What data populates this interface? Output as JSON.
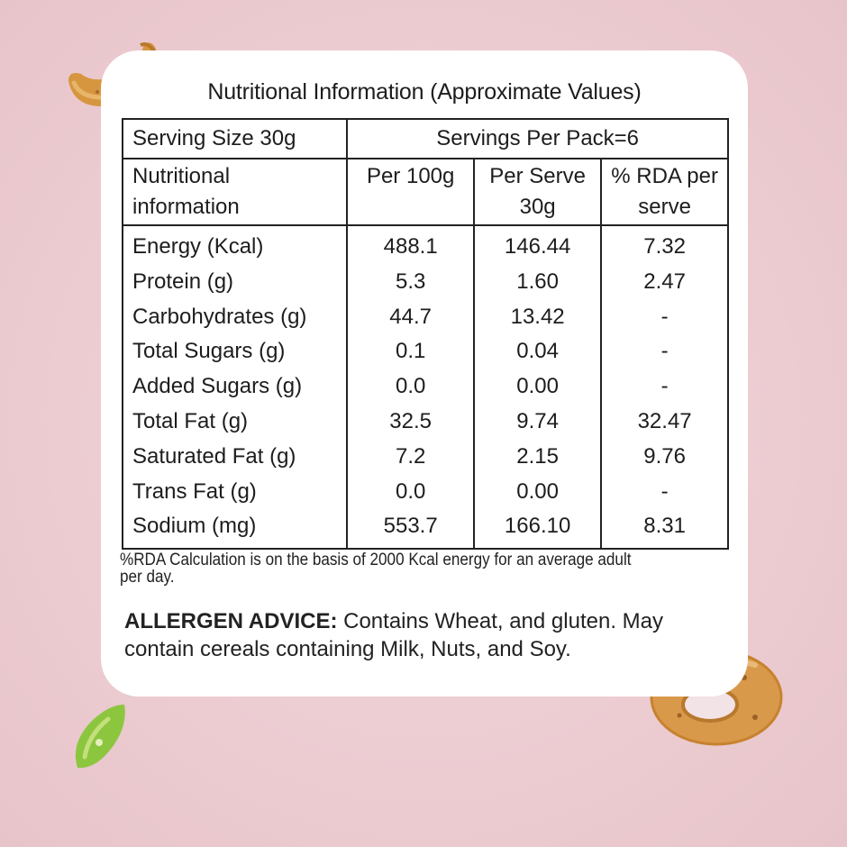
{
  "title": "Nutritional Information (Approximate Values)",
  "serving_size": "Serving Size 30g",
  "servings_per_pack": "Servings Per Pack=6",
  "headers": {
    "col1": "Nutritional information",
    "col2": "Per 100g",
    "col3": "Per Serve 30g",
    "col4": "% RDA per serve"
  },
  "rows": [
    {
      "name": "Energy (Kcal)",
      "per100": "488.1",
      "perserve": "146.44",
      "rda": "7.32"
    },
    {
      "name": "Protein (g)",
      "per100": "5.3",
      "perserve": "1.60",
      "rda": "2.47"
    },
    {
      "name": "Carbohydrates (g)",
      "per100": "44.7",
      "perserve": "13.42",
      "rda": "-"
    },
    {
      "name": "Total Sugars (g)",
      "per100": "0.1",
      "perserve": "0.04",
      "rda": "-"
    },
    {
      "name": "Added Sugars (g)",
      "per100": "0.0",
      "perserve": "0.00",
      "rda": "-"
    },
    {
      "name": "Total Fat (g)",
      "per100": "32.5",
      "perserve": "9.74",
      "rda": "32.47"
    },
    {
      "name": "Saturated Fat (g)",
      "per100": "7.2",
      "perserve": "2.15",
      "rda": "9.76"
    },
    {
      "name": "Trans Fat (g)",
      "per100": "0.0",
      "perserve": "0.00",
      "rda": "-"
    },
    {
      "name": "Sodium (mg)",
      "per100": "553.7",
      "perserve": "166.10",
      "rda": "8.31"
    }
  ],
  "rda_note": "%RDA Calculation is on the basis of 2000 Kcal energy for an average adult per day.",
  "allergen": {
    "label": "ALLERGEN ADVICE:",
    "text": " Contains Wheat, and gluten. May contain cereals containing Milk, Nuts, and Soy."
  },
  "colors": {
    "background": "#ecccd1",
    "card": "#ffffff",
    "snack": "#d99a45",
    "chili": "#8cc63f"
  },
  "decorations": [
    "macaroni-snack-icon",
    "ring-snack-icon",
    "green-chili-icon"
  ]
}
